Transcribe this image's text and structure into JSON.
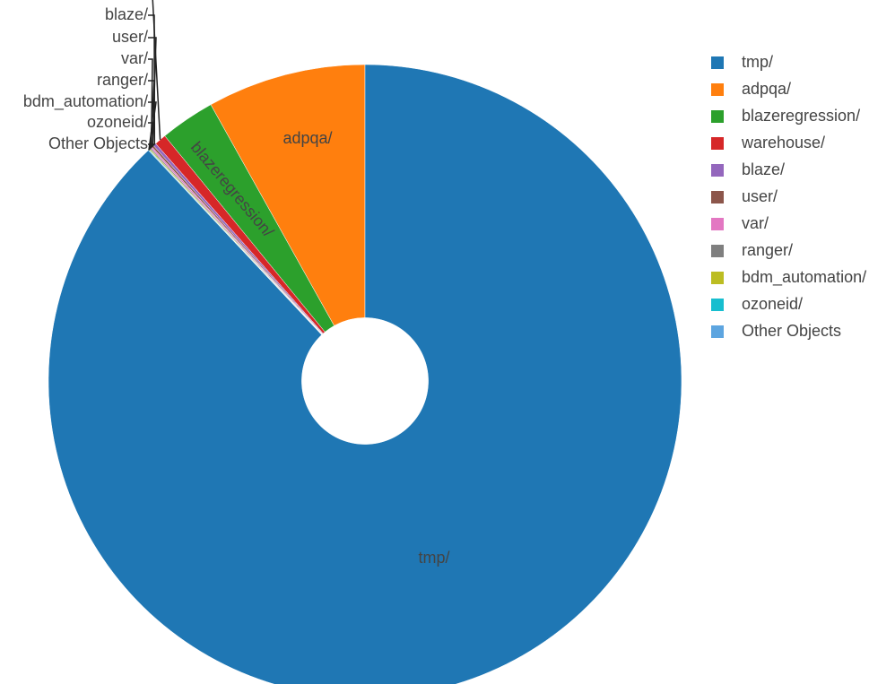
{
  "chart_data": {
    "type": "pie",
    "categories": [
      "tmp/",
      "adpqa/",
      "blazeregression/",
      "warehouse/",
      "blaze/",
      "user/",
      "var/",
      "ranger/",
      "bdm_automation/",
      "ozoneid/",
      "Other Objects"
    ],
    "values": [
      88.0,
      8.1,
      2.8,
      0.6,
      0.15,
      0.1,
      0.08,
      0.06,
      0.05,
      0.03,
      0.03
    ],
    "colors": [
      "#1f77b4",
      "#ff7f0e",
      "#2ca02c",
      "#d62728",
      "#9467bd",
      "#8c564b",
      "#e377c2",
      "#7f7f7f",
      "#bcbd22",
      "#17becf",
      "#5da5e0"
    ],
    "hole": 0.2
  }
}
